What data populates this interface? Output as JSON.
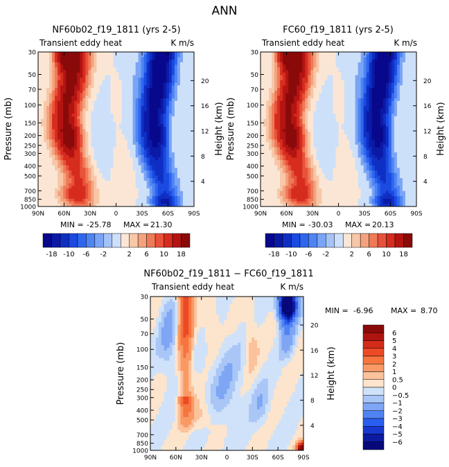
{
  "page_title": "ANN",
  "chart_data": [
    {
      "type": "heatmap",
      "title": "NF60b02_f19_1811 (yrs 2-5)",
      "subtitle_left": "Transient eddy heat",
      "subtitle_right": "K m/s",
      "xlabel": "",
      "ylabel": "Pressure (mb)",
      "y2label": "Height (km)",
      "x_ticks": [
        "90N",
        "60N",
        "30N",
        "0",
        "30S",
        "60S",
        "90S"
      ],
      "x_values": [
        90,
        60,
        30,
        0,
        -30,
        -60,
        -90
      ],
      "y_ticks": [
        "30",
        "50",
        "70",
        "100",
        "150",
        "200",
        "250",
        "300",
        "400",
        "500",
        "700",
        "850",
        "1000"
      ],
      "y_values": [
        30,
        50,
        70,
        100,
        150,
        200,
        250,
        300,
        400,
        500,
        700,
        850,
        1000
      ],
      "y2_ticks": [
        "20",
        "16",
        "12",
        "8",
        "4"
      ],
      "ylim": [
        1000,
        30
      ],
      "xlim": [
        90,
        -90
      ],
      "stats": {
        "min_label": "MIN =",
        "min_value": "-25.78",
        "max_label": "MAX =",
        "max_value": "21.30"
      },
      "colorbar_labels": [
        "-18",
        "-10",
        "-6",
        "-2",
        "2",
        "6",
        "10",
        "18"
      ]
    },
    {
      "type": "heatmap",
      "title": "FC60_f19_1811 (yrs 2-5)",
      "subtitle_left": "Transient eddy heat",
      "subtitle_right": "K m/s",
      "ylabel": "Pressure (mb)",
      "y2label": "Height (km)",
      "x_ticks": [
        "90N",
        "60N",
        "30N",
        "0",
        "30S",
        "60S",
        "90S"
      ],
      "y_ticks": [
        "30",
        "50",
        "70",
        "100",
        "150",
        "200",
        "250",
        "300",
        "400",
        "500",
        "700",
        "850",
        "1000"
      ],
      "y2_ticks": [
        "20",
        "16",
        "12",
        "8",
        "4"
      ],
      "stats": {
        "min_label": "MIN =",
        "min_value": "-30.03",
        "max_label": "MAX =",
        "max_value": "20.13"
      },
      "colorbar_labels": [
        "-18",
        "-10",
        "-6",
        "-2",
        "2",
        "6",
        "10",
        "18"
      ]
    },
    {
      "type": "heatmap",
      "title": "NF60b02_f19_1811 − FC60_f19_1811",
      "subtitle_left": "Transient eddy heat",
      "subtitle_right": "K m/s",
      "ylabel": "Pressure (mb)",
      "y2label": "Height (km)",
      "x_ticks": [
        "90N",
        "60N",
        "30N",
        "0",
        "30S",
        "60S",
        "90S"
      ],
      "y_ticks": [
        "30",
        "50",
        "70",
        "100",
        "150",
        "200",
        "250",
        "300",
        "400",
        "500",
        "700",
        "850",
        "1000"
      ],
      "y2_ticks": [
        "20",
        "16",
        "12",
        "8",
        "4"
      ],
      "stats": {
        "min_label": "MIN =",
        "min_value": "-6.96",
        "max_label": "MAX =",
        "max_value": "8.70"
      },
      "colorbar_labels": [
        "6",
        "5",
        "4",
        "3",
        "2",
        "1",
        "0.5",
        "0",
        "−0.5",
        "−1",
        "−2",
        "−3",
        "−4",
        "−5",
        "−6"
      ]
    }
  ],
  "colors": {
    "scale_top": [
      "#08088c",
      "#0b1aa6",
      "#0f2fc4",
      "#1a4ae0",
      "#2f66ee",
      "#4f84f3",
      "#7aa4f6",
      "#a6c3f7",
      "#cde0fa",
      "#fbe6d5",
      "#f7c7a7",
      "#f4a27e",
      "#ef7a58",
      "#e9523a",
      "#d62c1e",
      "#b31412",
      "#8a0a0a"
    ],
    "scale_diff": [
      "#8a0a0a",
      "#b01410",
      "#d22c18",
      "#ec4a26",
      "#f6743e",
      "#f99a66",
      "#fbc29c",
      "#fde4cc",
      "#cfe2f9",
      "#a9c6f7",
      "#7ea6f5",
      "#5083f2",
      "#2a5ef0",
      "#1838d0",
      "#0b1aa0",
      "#07087a"
    ]
  }
}
